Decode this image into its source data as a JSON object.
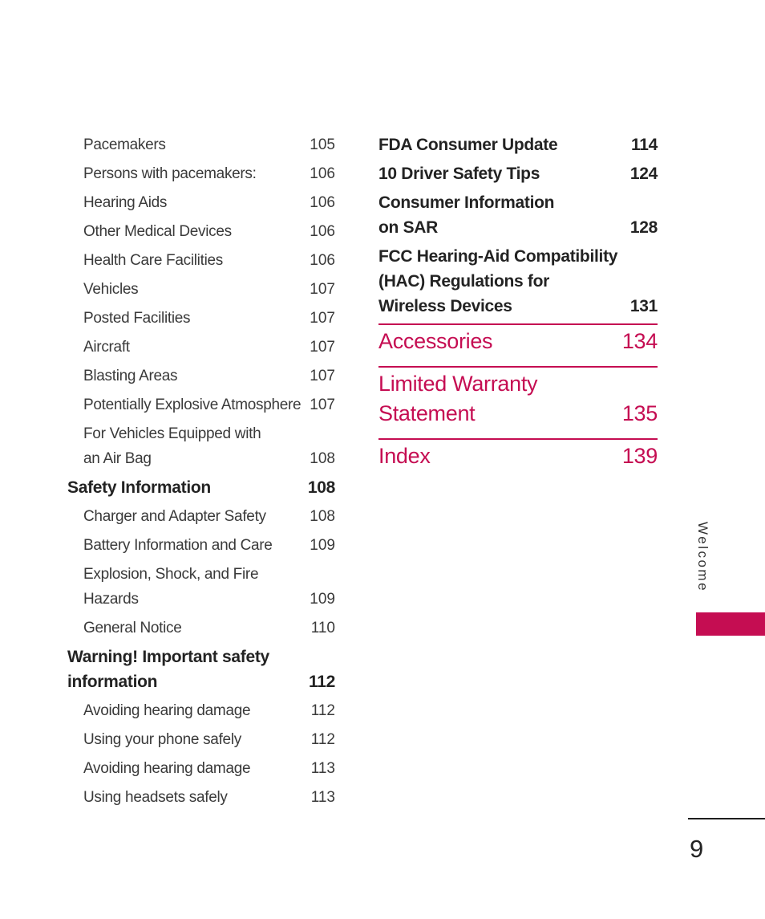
{
  "page": {
    "number": "9",
    "side_tab_label": "Welcome"
  },
  "colors": {
    "accent": "#C50D52",
    "heading_text": "#232323",
    "body_text": "#3A3A3A"
  },
  "toc": {
    "left_column": [
      {
        "type": "sub",
        "lines": [
          "Pacemakers"
        ],
        "page": "105"
      },
      {
        "type": "sub",
        "lines": [
          "Persons with pacemakers:"
        ],
        "page": "106"
      },
      {
        "type": "sub",
        "lines": [
          "Hearing Aids"
        ],
        "page": "106"
      },
      {
        "type": "sub",
        "lines": [
          "Other Medical Devices"
        ],
        "page": "106"
      },
      {
        "type": "sub",
        "lines": [
          "Health Care Facilities"
        ],
        "page": "106"
      },
      {
        "type": "sub",
        "lines": [
          "Vehicles"
        ],
        "page": "107"
      },
      {
        "type": "sub",
        "lines": [
          "Posted Facilities"
        ],
        "page": "107"
      },
      {
        "type": "sub",
        "lines": [
          "Aircraft"
        ],
        "page": "107"
      },
      {
        "type": "sub",
        "lines": [
          "Blasting Areas"
        ],
        "page": "107"
      },
      {
        "type": "sub",
        "lines": [
          "Potentially Explosive Atmosphere"
        ],
        "page": "107"
      },
      {
        "type": "sub",
        "lines": [
          "For Vehicles Equipped with",
          "an Air Bag"
        ],
        "page": "108"
      },
      {
        "type": "section",
        "lines": [
          "Safety Information"
        ],
        "page": "108"
      },
      {
        "type": "sub",
        "lines": [
          "Charger and Adapter Safety"
        ],
        "page": "108"
      },
      {
        "type": "sub",
        "lines": [
          "Battery Information and Care"
        ],
        "page": "109"
      },
      {
        "type": "sub",
        "lines": [
          "Explosion, Shock, and Fire",
          "Hazards"
        ],
        "page": "109"
      },
      {
        "type": "sub",
        "lines": [
          "General Notice"
        ],
        "page": "110"
      },
      {
        "type": "section",
        "lines": [
          "Warning! Important safety",
          "information"
        ],
        "page": "112"
      },
      {
        "type": "sub",
        "lines": [
          "Avoiding hearing damage"
        ],
        "page": "112"
      },
      {
        "type": "sub",
        "lines": [
          "Using your phone safely"
        ],
        "page": "112"
      },
      {
        "type": "sub",
        "lines": [
          "Avoiding hearing damage"
        ],
        "page": "113"
      },
      {
        "type": "sub",
        "lines": [
          "Using headsets safely"
        ],
        "page": "113"
      }
    ],
    "right_column": [
      {
        "type": "section",
        "lines": [
          "FDA Consumer Update"
        ],
        "page": "114"
      },
      {
        "type": "section",
        "lines": [
          "10 Driver Safety Tips"
        ],
        "page": "124"
      },
      {
        "type": "section",
        "lines": [
          "Consumer Information",
          "on SAR"
        ],
        "page": "128"
      },
      {
        "type": "section",
        "lines": [
          "FCC Hearing-Aid Compatibility",
          "(HAC) Regulations for",
          "Wireless Devices"
        ],
        "page": "131"
      },
      {
        "type": "major",
        "lines": [
          "Accessories"
        ],
        "page": "134"
      },
      {
        "type": "major",
        "lines": [
          "Limited Warranty",
          "Statement"
        ],
        "page": "135"
      },
      {
        "type": "major",
        "lines": [
          "Index"
        ],
        "page": "139"
      }
    ]
  }
}
